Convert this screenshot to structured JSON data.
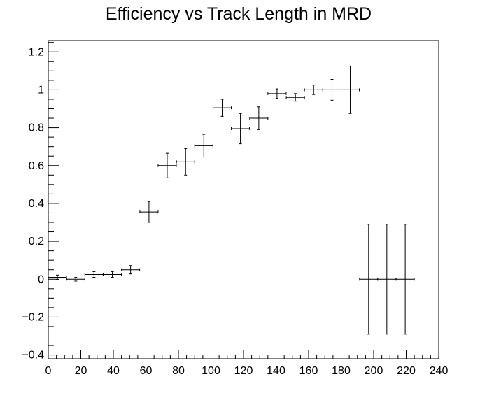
{
  "chart_data": {
    "type": "scatter",
    "title": "Efficiency vs Track Length in MRD",
    "xlabel": "",
    "ylabel": "",
    "xlim": [
      0,
      240
    ],
    "ylim": [
      -0.42,
      1.26
    ],
    "x_ticks": [
      0,
      20,
      40,
      60,
      80,
      100,
      120,
      140,
      160,
      180,
      200,
      220,
      240
    ],
    "y_ticks": [
      -0.4,
      -0.2,
      0,
      0.2,
      0.4,
      0.6,
      0.8,
      1,
      1.2
    ],
    "x_tick_labels": [
      "0",
      "20",
      "40",
      "60",
      "80",
      "100",
      "120",
      "140",
      "160",
      "180",
      "200",
      "220",
      "240"
    ],
    "y_tick_labels": [
      "−0.4",
      "−0.2",
      "0",
      "0.2",
      "0.4",
      "0.6",
      "0.8",
      "1",
      "1.2"
    ],
    "grid": false,
    "legend": "none",
    "colors": {
      "marker": "#000000",
      "frame": "#000000",
      "background": "#ffffff"
    },
    "series": [
      {
        "points": [
          {
            "x": 5.6,
            "xerr": 5.6,
            "y": 0.01,
            "yerr": 0.012
          },
          {
            "x": 16.9,
            "xerr": 5.6,
            "y": 0.0,
            "yerr": 0.01
          },
          {
            "x": 28.1,
            "xerr": 5.6,
            "y": 0.025,
            "yerr": 0.015
          },
          {
            "x": 39.4,
            "xerr": 5.6,
            "y": 0.025,
            "yerr": 0.015
          },
          {
            "x": 50.6,
            "xerr": 5.6,
            "y": 0.05,
            "yerr": 0.022
          },
          {
            "x": 61.9,
            "xerr": 5.6,
            "y": 0.355,
            "yerr": 0.055
          },
          {
            "x": 73.1,
            "xerr": 5.6,
            "y": 0.6,
            "yerr": 0.065
          },
          {
            "x": 84.4,
            "xerr": 5.6,
            "y": 0.62,
            "yerr": 0.07
          },
          {
            "x": 95.6,
            "xerr": 5.6,
            "y": 0.705,
            "yerr": 0.06
          },
          {
            "x": 106.9,
            "xerr": 5.6,
            "y": 0.905,
            "yerr": 0.045
          },
          {
            "x": 118.1,
            "xerr": 5.6,
            "y": 0.795,
            "yerr": 0.08
          },
          {
            "x": 129.4,
            "xerr": 5.6,
            "y": 0.85,
            "yerr": 0.06
          },
          {
            "x": 140.6,
            "xerr": 5.6,
            "y": 0.98,
            "yerr": 0.025
          },
          {
            "x": 151.9,
            "xerr": 5.6,
            "y": 0.96,
            "yerr": 0.02
          },
          {
            "x": 163.1,
            "xerr": 5.6,
            "y": 1.0,
            "yerr": 0.025
          },
          {
            "x": 174.4,
            "xerr": 5.6,
            "y": 1.0,
            "yerr": 0.055
          },
          {
            "x": 185.6,
            "xerr": 5.6,
            "y": 1.0,
            "yerr": 0.125
          },
          {
            "x": 196.9,
            "xerr": 5.6,
            "y": 0.0,
            "yerr": 0.29
          },
          {
            "x": 208.1,
            "xerr": 5.6,
            "y": 0.0,
            "yerr": 0.29
          },
          {
            "x": 219.4,
            "xerr": 5.6,
            "y": 0.0,
            "yerr": 0.29
          }
        ]
      }
    ]
  }
}
